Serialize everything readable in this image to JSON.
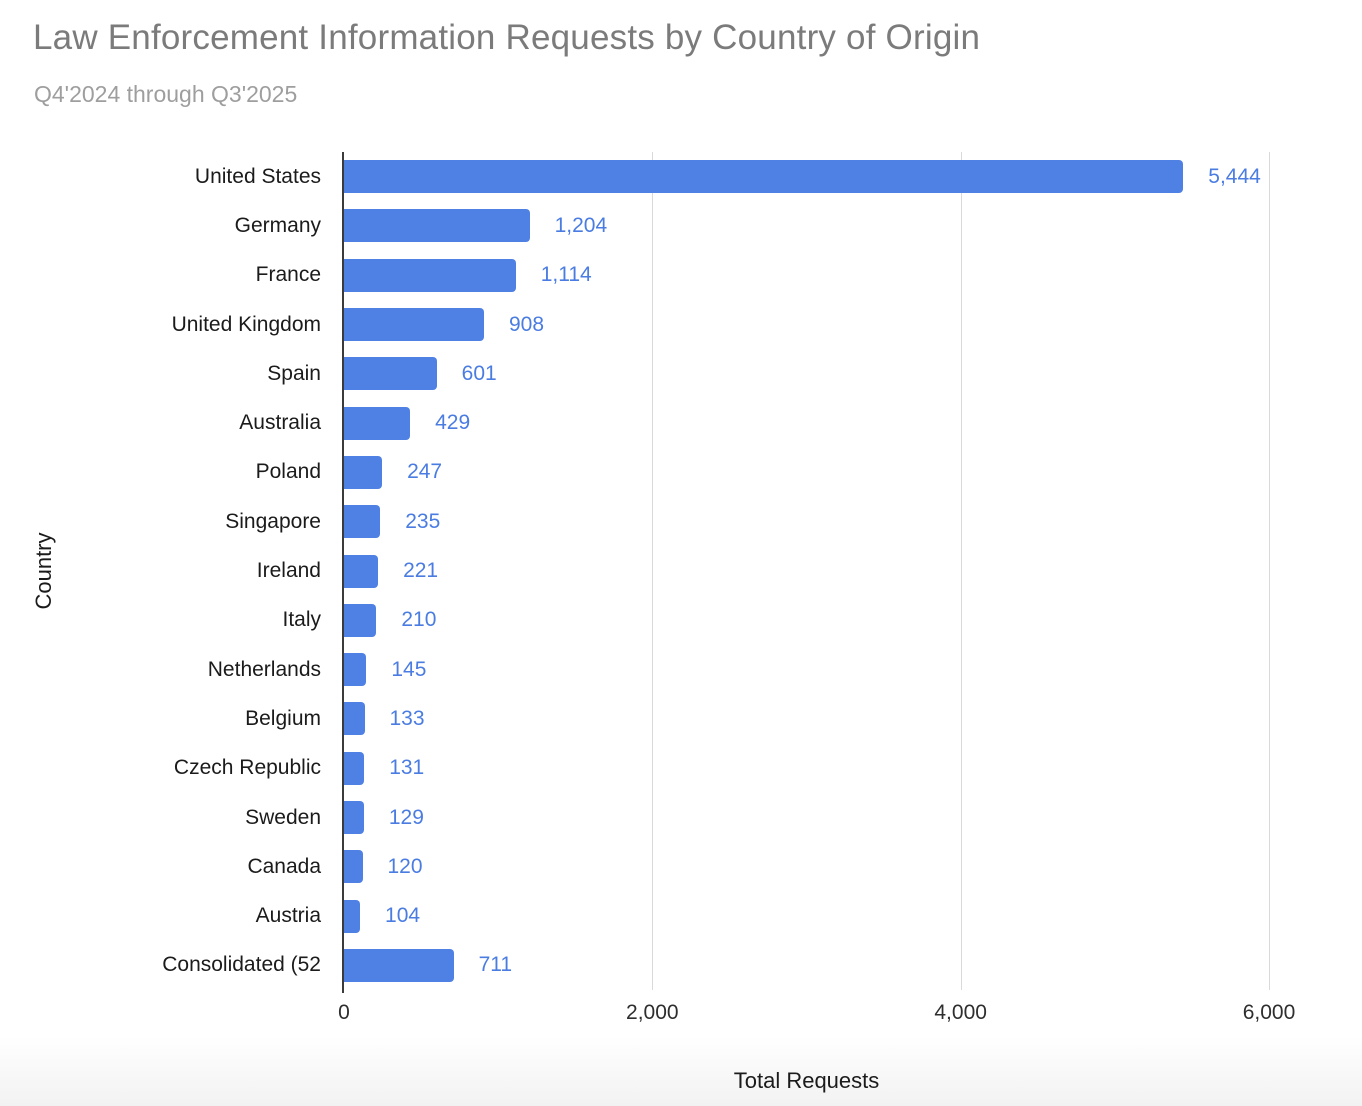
{
  "page": {
    "background": "#ffffff"
  },
  "chart_data": {
    "type": "bar",
    "orientation": "horizontal",
    "title": "Law Enforcement Information Requests by Country of Origin",
    "subtitle": "Q4'2024 through Q3'2025",
    "xlabel": "Total Requests",
    "ylabel": "Country",
    "xlim": [
      0,
      6000
    ],
    "grid": true,
    "legend": "none",
    "x_ticks": [
      {
        "value": 0,
        "label": "0"
      },
      {
        "value": 2000,
        "label": "2,000"
      },
      {
        "value": 4000,
        "label": "4,000"
      },
      {
        "value": 6000,
        "label": "6,000"
      }
    ],
    "categories": [
      "United States",
      "Germany",
      "France",
      "United Kingdom",
      "Spain",
      "Australia",
      "Poland",
      "Singapore",
      "Ireland",
      "Italy",
      "Netherlands",
      "Belgium",
      "Czech Republic",
      "Sweden",
      "Canada",
      "Austria",
      "Consolidated (52"
    ],
    "values": [
      5444,
      1204,
      1114,
      908,
      601,
      429,
      247,
      235,
      221,
      210,
      145,
      133,
      131,
      129,
      120,
      104,
      711
    ],
    "value_labels": [
      "5,444",
      "1,204",
      "1,114",
      "908",
      "601",
      "429",
      "247",
      "235",
      "221",
      "210",
      "145",
      "133",
      "131",
      "129",
      "120",
      "104",
      "711"
    ],
    "colors": {
      "bar": "#4f81e5",
      "value_label": "#4a7ce2",
      "gridline": "#d9d9d9",
      "axis_line": "#3b3b3b",
      "title": "#7b7b7b",
      "subtitle": "#9e9e9e",
      "category_label": "#1b1b1b",
      "tick_label": "#2e2e2e"
    }
  }
}
